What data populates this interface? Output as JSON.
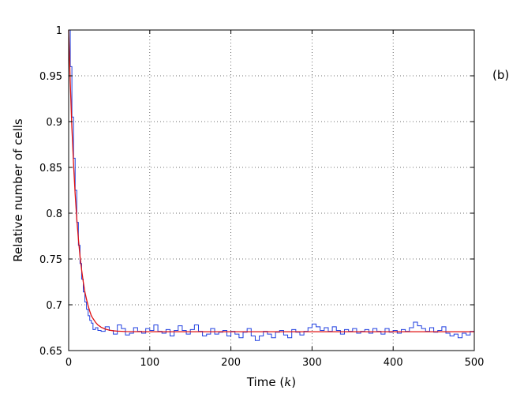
{
  "chart_data": {
    "type": "line",
    "panel_label": "(b)",
    "xlabel_text": "Time (",
    "xlabel_var": "k",
    "xlabel_close": ")",
    "ylabel": "Relative number of cells",
    "xlim": [
      0,
      500
    ],
    "ylim": [
      0.65,
      1.0
    ],
    "x_ticks": [
      0,
      100,
      200,
      300,
      400,
      500
    ],
    "x_tick_labels": [
      "0",
      "100",
      "200",
      "300",
      "400",
      "500"
    ],
    "y_ticks": [
      0.65,
      0.7,
      0.75,
      0.8,
      0.85,
      0.9,
      0.95,
      1.0
    ],
    "y_tick_labels": [
      "0.65",
      "0.7",
      "0.75",
      "0.8",
      "0.85",
      "0.9",
      "0.95",
      "1"
    ],
    "grid": true,
    "colors": {
      "simulation": "#1f3fe0",
      "model": "#e01010",
      "grid": "#444444"
    },
    "series": [
      {
        "kind": "stochastic-simulation",
        "color": "#1f3fe0",
        "x": [
          0,
          2,
          4,
          6,
          8,
          10,
          12,
          14,
          16,
          18,
          20,
          22,
          24,
          26,
          28,
          30,
          33,
          36,
          40,
          45,
          50,
          55,
          60,
          65,
          70,
          75,
          80,
          85,
          90,
          95,
          100,
          105,
          110,
          115,
          120,
          125,
          130,
          135,
          140,
          145,
          150,
          155,
          160,
          165,
          170,
          175,
          180,
          185,
          190,
          195,
          200,
          205,
          210,
          215,
          220,
          225,
          230,
          235,
          240,
          245,
          250,
          255,
          260,
          265,
          270,
          275,
          280,
          285,
          290,
          295,
          300,
          305,
          310,
          315,
          320,
          325,
          330,
          335,
          340,
          345,
          350,
          355,
          360,
          365,
          370,
          375,
          380,
          385,
          390,
          395,
          400,
          405,
          410,
          415,
          420,
          425,
          430,
          435,
          440,
          445,
          450,
          455,
          460,
          465,
          470,
          475,
          480,
          485,
          490,
          495,
          500
        ],
        "y": [
          1.0,
          0.96,
          0.905,
          0.86,
          0.825,
          0.79,
          0.765,
          0.745,
          0.728,
          0.714,
          0.703,
          0.695,
          0.688,
          0.683,
          0.68,
          0.673,
          0.675,
          0.672,
          0.671,
          0.676,
          0.672,
          0.668,
          0.678,
          0.674,
          0.667,
          0.669,
          0.675,
          0.671,
          0.669,
          0.674,
          0.672,
          0.678,
          0.671,
          0.669,
          0.673,
          0.666,
          0.672,
          0.677,
          0.672,
          0.668,
          0.673,
          0.678,
          0.671,
          0.666,
          0.668,
          0.674,
          0.668,
          0.67,
          0.672,
          0.666,
          0.671,
          0.668,
          0.664,
          0.67,
          0.674,
          0.666,
          0.661,
          0.666,
          0.671,
          0.668,
          0.664,
          0.67,
          0.672,
          0.667,
          0.664,
          0.673,
          0.67,
          0.667,
          0.671,
          0.675,
          0.679,
          0.676,
          0.672,
          0.675,
          0.671,
          0.676,
          0.672,
          0.668,
          0.673,
          0.671,
          0.674,
          0.669,
          0.671,
          0.673,
          0.669,
          0.674,
          0.671,
          0.668,
          0.674,
          0.67,
          0.672,
          0.669,
          0.673,
          0.671,
          0.675,
          0.681,
          0.677,
          0.674,
          0.671,
          0.675,
          0.67,
          0.672,
          0.676,
          0.669,
          0.666,
          0.668,
          0.664,
          0.669,
          0.667,
          0.671,
          0.678
        ]
      },
      {
        "kind": "deterministic-model",
        "color": "#e01010",
        "x": [
          0,
          2,
          4,
          6,
          8,
          10,
          12,
          14,
          16,
          18,
          20,
          22,
          24,
          26,
          28,
          30,
          33,
          36,
          40,
          45,
          50,
          55,
          60,
          70,
          80,
          100,
          150,
          200,
          250,
          300,
          350,
          400,
          450,
          500
        ],
        "y": [
          1.0,
          0.942,
          0.893,
          0.854,
          0.821,
          0.794,
          0.772,
          0.753,
          0.738,
          0.725,
          0.714,
          0.706,
          0.699,
          0.693,
          0.688,
          0.685,
          0.681,
          0.678,
          0.6755,
          0.6735,
          0.6723,
          0.6716,
          0.6712,
          0.6708,
          0.6707,
          0.6706,
          0.6706,
          0.6706,
          0.6706,
          0.6706,
          0.6706,
          0.6706,
          0.6706,
          0.6706
        ]
      }
    ]
  }
}
